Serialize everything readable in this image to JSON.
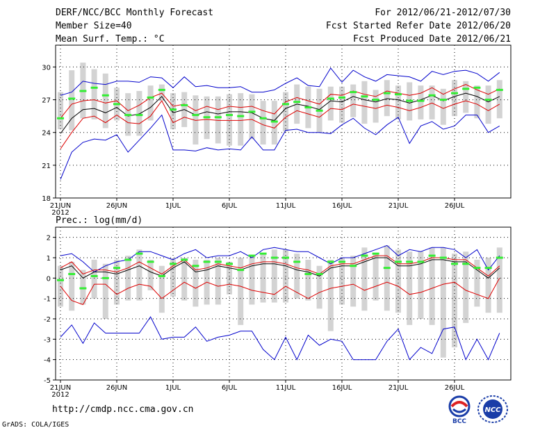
{
  "header": {
    "title": "DERF/NCC/BCC Monthly Forecast",
    "member_size": "Member Size=40",
    "variable": "Mean Surf. Temp.: °C",
    "period": "For 2012/06/21-2012/07/30",
    "fcst_started": "Fcst Started Refer Date 2012/06/20",
    "fcst_produced": "Fcst Produced Date 2012/06/21"
  },
  "prec_label": "Prec.: log(mm/d)",
  "footer": {
    "url": "http://cmdp.ncc.cma.gov.cn",
    "credit": "GrADS: COLA/IGES",
    "logo_bcc": "BCC",
    "logo_ncc": "NCC"
  },
  "colors": {
    "bar": "#d3d3d3",
    "median": "#33ee33",
    "mean": "#000000",
    "spread": "#dd0000",
    "range": "#0000cc",
    "grid": "#000000"
  },
  "chart_data": [
    {
      "type": "line",
      "title": "Mean Surf. Temp.: °C",
      "xlabel": "",
      "ylabel": "",
      "x_tick_labels": [
        "21JUN",
        "26JUN",
        "1JUL",
        "6JUL",
        "11JUL",
        "16JUL",
        "21JUL",
        "26JUL"
      ],
      "x_tick_days": [
        0,
        5,
        10,
        15,
        20,
        25,
        30,
        35
      ],
      "year_label": "2012",
      "ylim": [
        18,
        32
      ],
      "y_ticks": [
        18,
        21,
        24,
        27,
        30
      ],
      "grid": true,
      "series": [
        {
          "name": "max",
          "values": [
            19.7,
            22.2,
            23.1,
            23.4,
            23.3,
            23.8,
            22.2,
            23.3,
            24.4,
            25.6,
            22.4,
            22.4,
            22.3,
            22.6,
            22.4,
            22.5,
            22.4,
            23.6,
            22.4,
            22.4,
            24.2,
            24.3,
            24.0,
            24.0,
            23.9,
            24.7,
            25.3,
            24.4,
            23.8,
            24.7,
            25.4,
            23.0,
            24.6,
            25.0,
            24.3,
            24.6,
            25.6,
            25.6,
            24.0,
            24.6
          ]
        },
        {
          "name": "max_upper",
          "values": [
            27.4,
            27.7,
            28.7,
            28.5,
            28.4,
            28.7,
            28.7,
            28.6,
            29.1,
            29.0,
            28.1,
            29.1,
            28.2,
            28.3,
            28.1,
            28.1,
            28.2,
            27.7,
            27.7,
            27.9,
            28.5,
            29.0,
            28.3,
            28.2,
            29.9,
            28.6,
            29.7,
            29.1,
            28.7,
            29.3,
            29.2,
            29.1,
            28.7,
            29.6,
            29.3,
            29.6,
            29.7,
            29.4,
            28.7,
            29.5
          ]
        },
        {
          "name": "mean",
          "values": [
            23.9,
            25.3,
            26.1,
            26.2,
            25.8,
            26.3,
            25.5,
            25.7,
            26.3,
            27.3,
            25.8,
            26.1,
            25.6,
            25.9,
            25.7,
            25.9,
            25.9,
            25.8,
            25.3,
            25.1,
            26.2,
            26.6,
            26.4,
            26.1,
            26.9,
            26.8,
            27.3,
            27.0,
            26.8,
            27.1,
            27.0,
            26.7,
            27.0,
            27.4,
            26.9,
            27.3,
            27.6,
            27.3,
            26.8,
            27.3
          ]
        },
        {
          "name": "spread_upper",
          "values": [
            25.3,
            26.6,
            26.9,
            27.0,
            26.7,
            26.9,
            26.0,
            26.5,
            27.2,
            27.6,
            26.4,
            26.6,
            26.0,
            26.4,
            26.1,
            26.4,
            26.3,
            26.4,
            26.0,
            25.7,
            26.8,
            27.2,
            26.9,
            26.6,
            27.5,
            27.4,
            27.8,
            27.5,
            27.3,
            27.8,
            27.6,
            27.4,
            27.6,
            28.1,
            27.5,
            28.0,
            28.4,
            27.9,
            27.5,
            28.0
          ]
        },
        {
          "name": "spread_lower",
          "values": [
            22.5,
            24.0,
            25.3,
            25.5,
            24.9,
            25.6,
            24.9,
            24.8,
            25.5,
            26.9,
            24.9,
            25.4,
            25.1,
            25.2,
            25.1,
            25.1,
            25.1,
            25.2,
            24.7,
            24.4,
            25.4,
            26.0,
            25.7,
            25.4,
            26.2,
            26.1,
            26.6,
            26.4,
            26.2,
            26.5,
            26.3,
            26.0,
            26.3,
            26.7,
            26.2,
            26.6,
            26.9,
            26.6,
            26.0,
            26.6
          ]
        },
        {
          "name": "median",
          "values": [
            25.3,
            27.1,
            27.8,
            28.1,
            27.4,
            26.6,
            25.6,
            25.6,
            27.2,
            27.9,
            26.1,
            26.5,
            25.6,
            25.4,
            25.4,
            25.6,
            25.5,
            25.9,
            25.3,
            25.0,
            26.6,
            26.8,
            26.3,
            26.0,
            27.1,
            27.2,
            27.7,
            27.3,
            27.0,
            27.6,
            27.5,
            26.9,
            26.9,
            27.4,
            27.0,
            27.6,
            28.0,
            28.1,
            27.0,
            27.9
          ]
        },
        {
          "name": "bar_top",
          "values": [
            27.7,
            29.7,
            30.4,
            29.8,
            29.4,
            28.1,
            27.6,
            27.8,
            28.3,
            28.4,
            27.6,
            27.7,
            27.4,
            27.3,
            27.3,
            27.5,
            27.6,
            27.5,
            26.9,
            26.9,
            27.7,
            28.4,
            28.2,
            28.0,
            28.2,
            28.2,
            28.4,
            28.7,
            27.9,
            28.8,
            28.3,
            28.6,
            28.3,
            28.3,
            28.0,
            28.8,
            28.7,
            28.3,
            28.3,
            28.8
          ]
        },
        {
          "name": "bar_bottom",
          "values": [
            24.3,
            24.2,
            25.3,
            25.2,
            24.4,
            25.1,
            23.7,
            23.7,
            25.1,
            26.9,
            24.3,
            24.5,
            22.9,
            23.4,
            23.0,
            22.8,
            22.8,
            23.4,
            22.9,
            22.9,
            24.1,
            24.8,
            24.4,
            24.0,
            25.1,
            24.9,
            25.4,
            24.8,
            24.9,
            25.5,
            25.2,
            25.1,
            25.2,
            25.2,
            24.7,
            25.5,
            25.8,
            25.3,
            24.8,
            25.3
          ]
        }
      ]
    },
    {
      "type": "line",
      "title": "Prec.: log(mm/d)",
      "xlabel": "",
      "ylabel": "",
      "x_tick_labels": [
        "21JUN",
        "26JUN",
        "1JUL",
        "6JUL",
        "11JUL",
        "16JUL",
        "21JUL",
        "26JUL"
      ],
      "x_tick_days": [
        0,
        5,
        10,
        15,
        20,
        25,
        30,
        35
      ],
      "year_label": "2012",
      "ylim": [
        -5,
        2.5
      ],
      "y_ticks": [
        -5,
        -4,
        -3,
        -2,
        -1,
        0,
        1,
        2
      ],
      "grid": true,
      "series": [
        {
          "name": "max",
          "values": [
            -2.9,
            -2.3,
            -3.2,
            -2.2,
            -2.7,
            -2.7,
            -2.7,
            -2.7,
            -1.9,
            -3.0,
            -2.9,
            -2.9,
            -2.4,
            -3.1,
            -2.9,
            -2.8,
            -2.6,
            -2.6,
            -3.5,
            -4.0,
            -2.9,
            -4.0,
            -2.8,
            -3.3,
            -3.0,
            -3.1,
            -4.0,
            -4.0,
            -4.0,
            -3.1,
            -2.5,
            -4.0,
            -3.4,
            -3.7,
            -2.5,
            -2.4,
            -4.0,
            -3.0,
            -4.0,
            -2.7
          ]
        },
        {
          "name": "max_upper",
          "values": [
            1.1,
            1.2,
            0.8,
            0.3,
            0.6,
            0.8,
            0.9,
            1.3,
            1.3,
            1.1,
            0.9,
            1.2,
            1.4,
            1.0,
            1.1,
            1.1,
            1.3,
            1.0,
            1.4,
            1.5,
            1.4,
            1.3,
            1.3,
            1.0,
            0.7,
            1.0,
            1.0,
            1.2,
            1.4,
            1.6,
            1.1,
            1.4,
            1.3,
            1.5,
            1.5,
            1.4,
            1.0,
            1.4,
            0.4,
            1.1
          ]
        },
        {
          "name": "mean",
          "values": [
            0.4,
            0.6,
            0.0,
            0.3,
            0.3,
            0.2,
            0.4,
            0.6,
            0.3,
            0.1,
            0.5,
            0.8,
            0.3,
            0.4,
            0.6,
            0.5,
            0.4,
            0.6,
            0.7,
            0.7,
            0.6,
            0.4,
            0.3,
            0.1,
            0.5,
            0.6,
            0.6,
            0.8,
            1.0,
            1.0,
            0.6,
            0.6,
            0.7,
            0.9,
            0.9,
            0.8,
            0.8,
            0.4,
            0.0,
            0.5
          ]
        },
        {
          "name": "spread_upper",
          "values": [
            0.5,
            0.8,
            0.2,
            0.4,
            0.4,
            0.3,
            0.5,
            0.8,
            0.5,
            0.2,
            0.6,
            0.9,
            0.4,
            0.5,
            0.7,
            0.6,
            0.5,
            0.7,
            0.8,
            0.8,
            0.7,
            0.5,
            0.4,
            0.2,
            0.6,
            0.7,
            0.7,
            0.9,
            1.1,
            1.1,
            0.7,
            0.7,
            0.8,
            1.0,
            1.0,
            0.9,
            0.9,
            0.5,
            0.1,
            0.6
          ]
        },
        {
          "name": "spread_lower",
          "values": [
            -0.4,
            -1.1,
            -1.3,
            -0.3,
            -0.3,
            -0.8,
            -0.5,
            -0.3,
            -0.4,
            -1.0,
            -0.6,
            -0.2,
            -0.5,
            -0.2,
            -0.4,
            -0.3,
            -0.4,
            -0.6,
            -0.7,
            -0.8,
            -0.4,
            -0.7,
            -1.0,
            -0.7,
            -0.5,
            -0.4,
            -0.3,
            -0.6,
            -0.4,
            -0.2,
            -0.4,
            -0.8,
            -0.7,
            -0.5,
            -0.3,
            -0.2,
            -0.6,
            -0.8,
            -1.0,
            0.0
          ]
        },
        {
          "name": "median",
          "values": [
            -0.1,
            0.2,
            -0.5,
            0.1,
            0.0,
            0.5,
            0.9,
            1.2,
            0.8,
            0.1,
            0.7,
            0.9,
            0.6,
            0.8,
            0.8,
            0.7,
            0.4,
            1.1,
            1.2,
            1.0,
            1.0,
            0.8,
            0.2,
            0.2,
            0.8,
            0.8,
            0.6,
            1.1,
            1.2,
            0.5,
            0.8,
            0.8,
            0.8,
            1.1,
            1.0,
            0.7,
            0.7,
            0.5,
            0.5,
            1.0
          ]
        },
        {
          "name": "bar_top",
          "values": [
            0.6,
            0.8,
            0.4,
            0.9,
            0.7,
            0.9,
            1.1,
            1.4,
            0.9,
            0.6,
            0.9,
            1.0,
            0.9,
            0.9,
            1.0,
            0.8,
            1.0,
            1.1,
            1.2,
            1.4,
            1.4,
            1.2,
            0.9,
            0.6,
            0.9,
            1.0,
            1.1,
            1.5,
            1.2,
            1.6,
            1.4,
            1.3,
            1.3,
            1.5,
            1.5,
            1.2,
            1.3,
            0.9,
            1.0,
            1.5
          ]
        },
        {
          "name": "bar_bottom",
          "values": [
            -1.4,
            -1.6,
            -1.3,
            -1.0,
            -2.0,
            -1.3,
            -1.1,
            -1.1,
            -0.6,
            -1.7,
            -0.9,
            -1.1,
            -1.4,
            -1.3,
            -1.3,
            -0.8,
            -2.3,
            -1.3,
            -1.2,
            -1.2,
            -1.2,
            -1.0,
            -1.1,
            -1.5,
            -2.6,
            -1.3,
            -1.4,
            -1.6,
            -1.1,
            -1.6,
            -1.7,
            -2.3,
            -2.0,
            -2.3,
            -3.9,
            -3.4,
            -2.2,
            -1.4,
            -1.7,
            -1.7
          ]
        }
      ]
    }
  ]
}
